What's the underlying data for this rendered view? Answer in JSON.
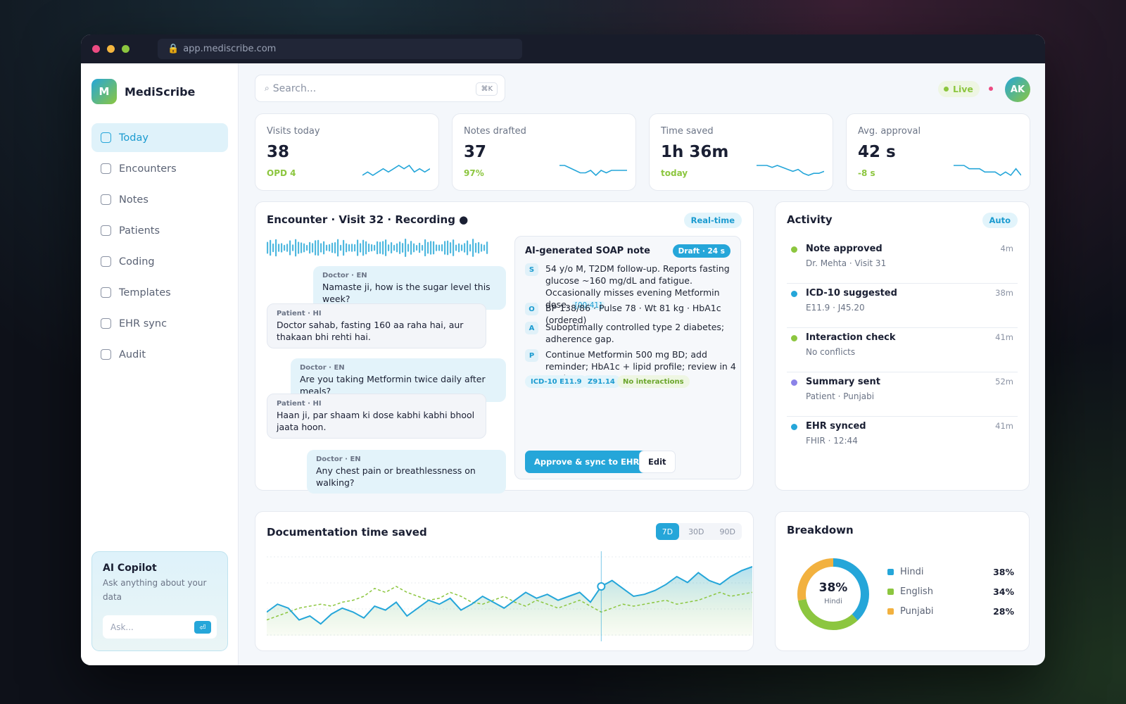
{
  "browser": {
    "url": "app.mediscribe.com",
    "lock_icon": "lock-icon",
    "dots": [
      "#ec4b82",
      "#f4b63f",
      "#8cc63f"
    ]
  },
  "brand": {
    "initial": "M",
    "name": "MediScribe"
  },
  "nav": [
    {
      "label": "Today",
      "active": true
    },
    {
      "label": "Encounters"
    },
    {
      "label": "Notes"
    },
    {
      "label": "Patients"
    },
    {
      "label": "Coding"
    },
    {
      "label": "Templates"
    },
    {
      "label": "EHR sync"
    },
    {
      "label": "Audit"
    }
  ],
  "copilot": {
    "title": "AI Copilot",
    "desc": "Ask anything about your data",
    "placeholder": "Ask...",
    "send_icon": "⏎"
  },
  "search": {
    "icon": "⌕",
    "placeholder": "Search...",
    "shortcut": "⌘K"
  },
  "topbar": {
    "live": "Live",
    "avatar": "AK"
  },
  "colors": {
    "accent": "#25a6d9",
    "green": "#8cc63f",
    "orange": "#f2b13f",
    "purple": "#8b83e8"
  },
  "stats": [
    {
      "label": "Visits today",
      "value": "38",
      "sub": "OPD 4",
      "trend": [
        5,
        6,
        5,
        6,
        7,
        6,
        7,
        8,
        7,
        8,
        6,
        7,
        6,
        7
      ]
    },
    {
      "label": "Notes drafted",
      "value": "37",
      "sub": "97%",
      "trend": [
        7,
        7,
        6,
        5,
        4,
        4,
        5,
        3,
        5,
        4,
        5,
        5,
        5,
        5
      ]
    },
    {
      "label": "Time saved",
      "value": "1h 36m",
      "sub": "today",
      "trend": [
        8,
        8,
        8,
        7,
        8,
        7,
        6,
        5,
        6,
        4,
        3,
        4,
        4,
        5
      ]
    },
    {
      "label": "Avg. approval",
      "value": "42 s",
      "sub": "-8 s",
      "trend": [
        7,
        7,
        7,
        6,
        6,
        6,
        5,
        5,
        5,
        4,
        5,
        4,
        6,
        4
      ]
    }
  ],
  "encounter": {
    "title": "Encounter · Visit 32 · Recording ●",
    "badge": "Real-time",
    "messages": [
      {
        "role": "Doctor · EN",
        "text": "Namaste ji, how is the sugar level this week?"
      },
      {
        "role": "Patient · HI",
        "text": "Doctor sahab, fasting 160 aa raha hai, aur thakaan bhi rehti hai."
      },
      {
        "role": "Doctor · EN",
        "text": "Are you taking Metformin twice daily after meals?"
      },
      {
        "role": "Patient · HI",
        "text": "Haan ji, par shaam ki dose kabhi kabhi bhool jaata hoon."
      },
      {
        "role": "Doctor · EN",
        "text": "Any chest pain or breathlessness on walking?"
      }
    ],
    "soap": {
      "title": "AI-generated SOAP note",
      "badge": "Draft · 24 s",
      "rows": [
        {
          "tag": "S",
          "text": "54 y/o M, T2DM follow-up. Reports fasting glucose ~160 mg/dL and fatigue. Occasionally misses evening Metformin dose.",
          "ts": "[00:41]"
        },
        {
          "tag": "O",
          "text": "BP 138/86 · Pulse 78 · Wt 81 kg · HbA1c (ordered)"
        },
        {
          "tag": "A",
          "text": "Suboptimally controlled type 2 diabetes; adherence gap."
        },
        {
          "tag": "P",
          "text": "Continue Metformin 500 mg BD; add reminder; HbA1c + lipid profile; review in 4 weeks."
        }
      ],
      "chips": [
        "ICD-10 E11.9",
        "Z91.14",
        "No interactions"
      ],
      "approve": "Approve & sync to EHR",
      "edit": "Edit"
    }
  },
  "activity": {
    "title": "Activity",
    "badge": "Auto",
    "items": [
      {
        "title": "Note approved",
        "sub": "Dr. Mehta · Visit 31",
        "time": "4m",
        "color": "#8cc63f"
      },
      {
        "title": "ICD-10 suggested",
        "sub": "E11.9 · J45.20",
        "time": "38m",
        "color": "#25a6d9"
      },
      {
        "title": "Interaction check",
        "sub": "No conflicts",
        "time": "41m",
        "color": "#8cc63f"
      },
      {
        "title": "Summary sent",
        "sub": "Patient · Punjabi",
        "time": "52m",
        "color": "#8b83e8"
      },
      {
        "title": "EHR synced",
        "sub": "FHIR · 12:44",
        "time": "41m",
        "color": "#25a6d9"
      }
    ]
  },
  "chart_data": {
    "type": "area",
    "title": "Documentation time saved",
    "ranges": [
      "7D",
      "30D",
      "90D"
    ],
    "selected_range": "7D",
    "series": [
      {
        "values": [
          42,
          46,
          44,
          38,
          40,
          36,
          41,
          44,
          42,
          39,
          45,
          43,
          47,
          40,
          44,
          48,
          46,
          49,
          43,
          46,
          50,
          47,
          44,
          48,
          52,
          49,
          51,
          48,
          50,
          52,
          47,
          55,
          58,
          54,
          50,
          51,
          53,
          56,
          60,
          57,
          62,
          58,
          56,
          60,
          63,
          65
        ]
      },
      {
        "values": [
          38,
          40,
          42,
          44,
          45,
          46,
          45,
          47,
          48,
          50,
          54,
          52,
          55,
          52,
          50,
          48,
          49,
          52,
          50,
          47,
          46,
          48,
          50,
          47,
          45,
          48,
          46,
          44,
          46,
          48,
          45,
          42,
          44,
          46,
          45,
          46,
          47,
          48,
          46,
          47,
          48,
          50,
          52,
          50,
          51,
          52
        ]
      }
    ],
    "highlight_index": 31
  },
  "breakdown": {
    "title": "Breakdown",
    "center_value": "38%",
    "center_label": "Hindi",
    "items": [
      {
        "label": "Hindi",
        "value": 38,
        "display": "38%",
        "color": "#25a6d9"
      },
      {
        "label": "English",
        "value": 34,
        "display": "34%",
        "color": "#8cc63f"
      },
      {
        "label": "Punjabi",
        "value": 28,
        "display": "28%",
        "color": "#f2b13f"
      }
    ]
  }
}
